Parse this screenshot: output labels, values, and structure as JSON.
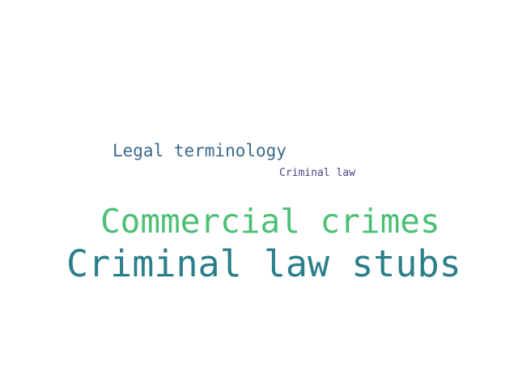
{
  "words": [
    {
      "text": "Legal terminology",
      "color": "#3b6a8c"
    },
    {
      "text": "Criminal law",
      "color": "#4a3f7f"
    },
    {
      "text": "Commercial crimes",
      "color": "#4cbf75"
    },
    {
      "text": "Criminal law stubs",
      "color": "#2a7f8a"
    }
  ]
}
